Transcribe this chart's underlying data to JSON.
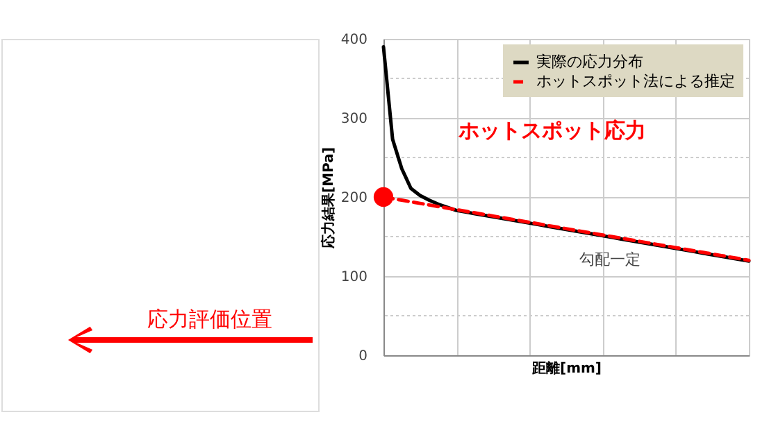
{
  "chart_data": {
    "type": "line",
    "xlabel": "距離[mm]",
    "ylabel": "応力結果[MPa]",
    "categories": [
      null,
      null,
      null,
      null,
      null,
      null,
      null,
      null,
      null,
      null,
      null,
      null,
      null,
      null,
      null,
      null,
      null,
      null,
      null,
      null,
      null,
      null,
      null,
      null,
      null,
      null,
      null,
      null,
      null,
      null,
      null,
      null,
      null,
      null,
      null,
      null,
      null,
      null,
      null,
      null,
      null
    ],
    "series": [
      {
        "name": "実際の応力分布",
        "color": "#000000",
        "line_style": "solid",
        "values": [
          390,
          273,
          236,
          211,
          202,
          196,
          191,
          187,
          183,
          181,
          179,
          177,
          175,
          173,
          171,
          169,
          167,
          165,
          163,
          161,
          159,
          157,
          155,
          153,
          151,
          149,
          147,
          145,
          143,
          141,
          139,
          137,
          135,
          133,
          131,
          129,
          127,
          125,
          123,
          121,
          119
        ]
      },
      {
        "name": "ホットスポット法による推定",
        "color": "#ff0000",
        "line_style": "dashed",
        "values": [
          200,
          198,
          196,
          194,
          192,
          190,
          188,
          186,
          184,
          182,
          180,
          178,
          176,
          174,
          172,
          170,
          168,
          166,
          164,
          162,
          160,
          158,
          156,
          154,
          152,
          150,
          148,
          146,
          144,
          142,
          140,
          138,
          136,
          134,
          132,
          130,
          128,
          126,
          124,
          122,
          120
        ]
      },
      {
        "type": "scatter",
        "color": "#ff0000",
        "marker": "circle",
        "values": [
          200,
          null,
          null,
          null,
          null,
          null,
          null,
          null,
          null,
          null,
          null,
          null,
          null,
          null,
          null,
          null,
          null,
          null,
          null,
          null,
          null,
          null,
          null,
          null,
          null,
          null,
          null,
          null,
          null,
          null,
          null,
          null,
          null,
          null,
          null,
          null,
          null,
          null,
          null,
          null,
          null
        ]
      }
    ],
    "ylim": [
      0,
      400
    ],
    "yticks": [
      0,
      {
        "value": 50,
        "label": null
      },
      100,
      {
        "value": 150,
        "label": null
      },
      200,
      {
        "value": 250,
        "label": null
      },
      300,
      {
        "value": 350,
        "label": null
      },
      400
    ],
    "annotations": [
      "応力評価位置",
      "ホットスポット応力",
      "勾配一定"
    ],
    "grid": true,
    "legend": "top right",
    "tick_labels": "y"
  }
}
